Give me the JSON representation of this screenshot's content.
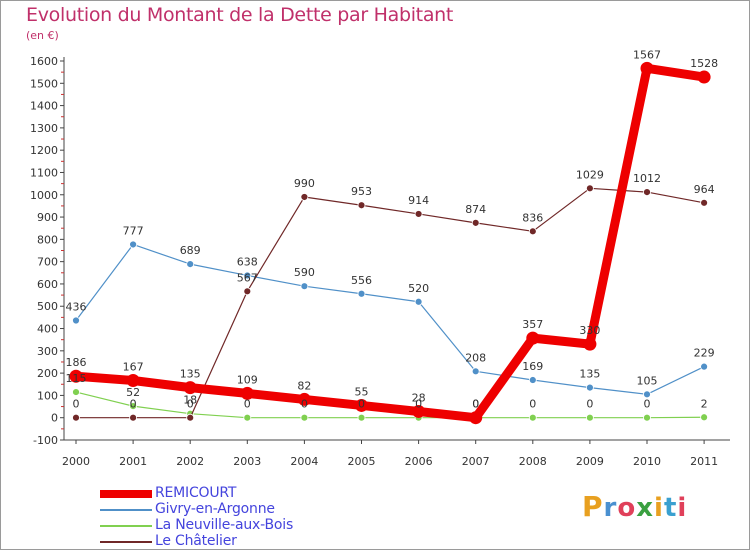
{
  "title": "Evolution du Montant de la Dette par Habitant",
  "subtitle": "(en €)",
  "logo": {
    "text": "Proxiti",
    "colors": [
      "#e8a020",
      "#4a90d0",
      "#e0405a",
      "#3aa040",
      "#e8a020",
      "#3aa0d0",
      "#e0405a"
    ]
  },
  "chart_data": {
    "type": "line",
    "title": "Evolution du Montant de la Dette par Habitant",
    "ylabel": "(en €)",
    "ylim": [
      -100,
      1600
    ],
    "yticks": [
      "-100",
      "0",
      "100",
      "200",
      "300",
      "400",
      "500",
      "600",
      "700",
      "800",
      "900",
      "1000",
      "1100",
      "1200",
      "1300",
      "1400",
      "1500",
      "1600"
    ],
    "categories": [
      "2000",
      "2001",
      "2002",
      "2003",
      "2004",
      "2005",
      "2006",
      "2007",
      "2008",
      "2009",
      "2010",
      "2011"
    ],
    "grid": false,
    "legend_position": "bottom-left",
    "series": [
      {
        "name": "REMICOURT",
        "color": "#ee0000",
        "emphasis": true,
        "values": [
          186,
          167,
          135,
          109,
          82,
          55,
          28,
          0,
          357,
          330,
          1567,
          1528
        ],
        "labels": [
          "186",
          "167",
          "135",
          "109",
          "82",
          "55",
          "28",
          "0",
          "357",
          "330",
          "1567",
          "1528"
        ]
      },
      {
        "name": "Givry-en-Argonne",
        "color": "#5090c8",
        "values": [
          436,
          777,
          689,
          638,
          590,
          556,
          520,
          208,
          169,
          135,
          105,
          229
        ],
        "labels": [
          "436",
          "777",
          "689",
          "638",
          "590",
          "556",
          "520",
          "208",
          "169",
          "135",
          "105",
          "229"
        ]
      },
      {
        "name": "La Neuville-aux-Bois",
        "color": "#80d050",
        "values": [
          115,
          52,
          18,
          0,
          0,
          0,
          0,
          0,
          0,
          0,
          0,
          2
        ],
        "labels": [
          "115",
          "52",
          "18",
          "0",
          "0",
          "0",
          "0",
          "0",
          "0",
          "0",
          "0",
          "2"
        ]
      },
      {
        "name": "Le Châtelier",
        "color": "#702828",
        "values": [
          0,
          0,
          0,
          567,
          990,
          953,
          914,
          874,
          836,
          1029,
          1012,
          964
        ],
        "labels": [
          "0",
          "0",
          "0",
          "567",
          "990",
          "953",
          "914",
          "874",
          "836",
          "1029",
          "1012",
          "964"
        ]
      }
    ]
  }
}
